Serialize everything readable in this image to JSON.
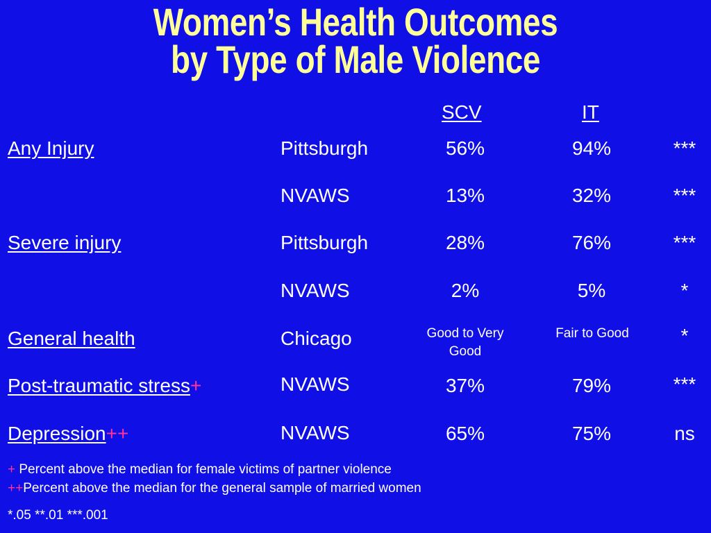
{
  "title": {
    "line1": "Women’s Health Outcomes",
    "line2": "by Type of Male Violence"
  },
  "columns": {
    "scv": "SCV",
    "it": "IT"
  },
  "rows": [
    {
      "label": "Any Injury",
      "mark": "",
      "site": "Pittsburgh",
      "scv": "56%",
      "it": "94%",
      "sig": "***"
    },
    {
      "label": "",
      "mark": "",
      "site": "NVAWS",
      "scv": "13%",
      "it": "32%",
      "sig": "***"
    },
    {
      "label": "Severe injury",
      "mark": "",
      "site": "Pittsburgh",
      "scv": "28%",
      "it": "76%",
      "sig": "***"
    },
    {
      "label": "",
      "mark": "",
      "site": "NVAWS",
      "scv": "2%",
      "it": "5%",
      "sig": "*"
    },
    {
      "label": "General health",
      "mark": "",
      "site": "Chicago",
      "scv": "Good to Very Good",
      "it": "Fair to Good",
      "sig": "*"
    },
    {
      "label": "Post-traumatic stress",
      "mark": "+",
      "site": "NVAWS",
      "scv": "37%",
      "it": "79%",
      "sig": "***"
    },
    {
      "label": "Depression",
      "mark": "++",
      "site": "NVAWS",
      "scv": "65%",
      "it": "75%",
      "sig": "ns"
    }
  ],
  "notes": {
    "n1_mark": "+",
    "n1_text": " Percent above the median for female victims of partner violence",
    "n2_mark": "++",
    "n2_text": "Percent above the median for the general sample of married women",
    "n3_text": "*.05  **.01  ***.001"
  },
  "colors": {
    "background": "#0f0fe6",
    "title": "#ffff99",
    "text": "#ffffff",
    "mark": "#ff3399"
  }
}
